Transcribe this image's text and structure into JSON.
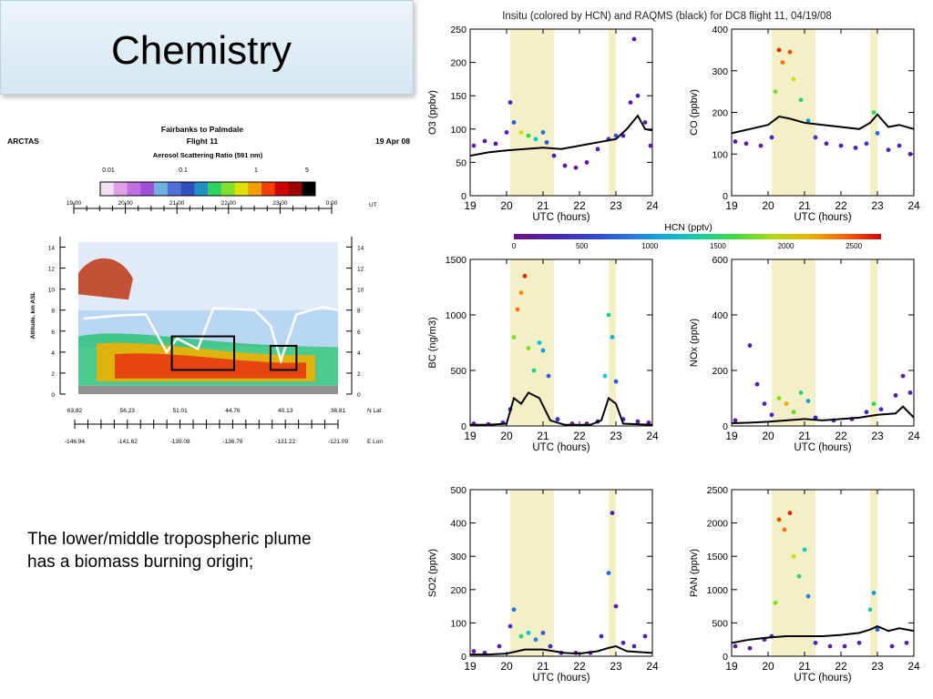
{
  "slide": {
    "title": "Chemistry",
    "caption_line1": "The lower/middle tropospheric plume",
    "caption_line2": "has a biomass burning origin;"
  },
  "lidar": {
    "left_label": "ARCTAS",
    "title_line1": "Fairbanks to Palmdale",
    "title_line2": "Flight 11",
    "right_label": "19 Apr 08",
    "colorbar_title": "Aerosol Scattering Ratio (591 nm)",
    "colorbar_ticks": [
      "0.01",
      "0.1",
      "1",
      "5"
    ],
    "time_ticks": [
      "19:00",
      "20:00",
      "21:00",
      "22:00",
      "23:00",
      "0:00"
    ],
    "time_unit": "UT",
    "altitude_label": "Altitude, km ASL",
    "altitude_ticks": [
      "0",
      "2",
      "4",
      "6",
      "8",
      "10",
      "12",
      "14"
    ],
    "lat_ticks": [
      "63.82",
      "56.23",
      "51.01",
      "44.76",
      "40.13",
      "36.81"
    ],
    "lat_unit": "N Lat",
    "lon_ticks": [
      "-146.94",
      "-141.62",
      "-139.08",
      "-136.79",
      "-131.22",
      "-121.09"
    ],
    "lon_unit": "E Lon",
    "boxes_hours": [
      [
        20.8,
        22.0,
        2.3,
        5.5
      ],
      [
        22.7,
        23.2,
        2.3,
        4.6
      ]
    ]
  },
  "chart_data": {
    "type": "scatter",
    "title": "Insitu (colored by HCN) and RAQMS (black) for DC8 flight 11, 04/19/08",
    "colorbar": {
      "label": "HCN (pptv)",
      "ticks": [
        "0",
        "500",
        "1000",
        "1500",
        "2000",
        "2500"
      ],
      "range": [
        0,
        2700
      ]
    },
    "xlabel": "UTC (hours)",
    "xlim": [
      19,
      24
    ],
    "xticks": [
      "19",
      "20",
      "21",
      "22",
      "23",
      "24"
    ],
    "shaded_hours": [
      [
        20.1,
        21.3
      ],
      [
        22.8,
        23.0
      ]
    ],
    "panels": [
      {
        "ylabel": "O3 (ppbv)",
        "ylim": [
          0,
          250
        ],
        "yticks": [
          "0",
          "50",
          "100",
          "150",
          "200",
          "250"
        ],
        "raqms": [
          [
            19.0,
            60
          ],
          [
            19.5,
            65
          ],
          [
            20.0,
            68
          ],
          [
            20.5,
            70
          ],
          [
            21.0,
            72
          ],
          [
            21.5,
            70
          ],
          [
            22.0,
            75
          ],
          [
            22.5,
            80
          ],
          [
            23.0,
            85
          ],
          [
            23.3,
            100
          ],
          [
            23.6,
            120
          ],
          [
            23.8,
            100
          ],
          [
            24.0,
            98
          ]
        ],
        "insitu": [
          [
            19.1,
            75,
            100
          ],
          [
            19.4,
            82,
            150
          ],
          [
            19.7,
            78,
            200
          ],
          [
            20.0,
            95,
            300
          ],
          [
            20.1,
            140,
            400
          ],
          [
            20.2,
            110,
            700
          ],
          [
            20.4,
            95,
            2000
          ],
          [
            20.6,
            90,
            1600
          ],
          [
            20.8,
            85,
            1200
          ],
          [
            21.0,
            95,
            800
          ],
          [
            21.1,
            80,
            600
          ],
          [
            21.3,
            60,
            300
          ],
          [
            21.6,
            45,
            150
          ],
          [
            21.9,
            42,
            100
          ],
          [
            22.2,
            50,
            150
          ],
          [
            22.5,
            70,
            250
          ],
          [
            22.8,
            85,
            500
          ],
          [
            23.0,
            90,
            700
          ],
          [
            23.2,
            90,
            300
          ],
          [
            23.4,
            140,
            200
          ],
          [
            23.5,
            235,
            150
          ],
          [
            23.6,
            150,
            250
          ],
          [
            23.8,
            110,
            200
          ],
          [
            23.95,
            75,
            150
          ]
        ]
      },
      {
        "ylabel": "CO (ppbv)",
        "ylim": [
          0,
          400
        ],
        "yticks": [
          "0",
          "100",
          "200",
          "300",
          "400"
        ],
        "raqms": [
          [
            19.0,
            150
          ],
          [
            19.5,
            160
          ],
          [
            20.0,
            170
          ],
          [
            20.3,
            190
          ],
          [
            20.6,
            185
          ],
          [
            21.0,
            175
          ],
          [
            21.5,
            170
          ],
          [
            22.0,
            165
          ],
          [
            22.5,
            160
          ],
          [
            22.8,
            175
          ],
          [
            23.0,
            195
          ],
          [
            23.3,
            165
          ],
          [
            23.6,
            170
          ],
          [
            24.0,
            160
          ]
        ],
        "insitu": [
          [
            19.1,
            130,
            150
          ],
          [
            19.4,
            125,
            150
          ],
          [
            19.8,
            120,
            200
          ],
          [
            20.1,
            140,
            400
          ],
          [
            20.2,
            250,
            1800
          ],
          [
            20.3,
            350,
            2600
          ],
          [
            20.4,
            320,
            2400
          ],
          [
            20.6,
            345,
            2500
          ],
          [
            20.7,
            280,
            2000
          ],
          [
            20.9,
            230,
            1500
          ],
          [
            21.1,
            180,
            1000
          ],
          [
            21.3,
            140,
            500
          ],
          [
            21.6,
            125,
            200
          ],
          [
            22.0,
            120,
            200
          ],
          [
            22.4,
            115,
            250
          ],
          [
            22.7,
            125,
            500
          ],
          [
            22.9,
            200,
            1500
          ],
          [
            23.0,
            150,
            800
          ],
          [
            23.3,
            110,
            400
          ],
          [
            23.6,
            120,
            300
          ],
          [
            23.9,
            100,
            200
          ]
        ]
      },
      {
        "ylabel": "BC (ng/m3)",
        "ylim": [
          0,
          1500
        ],
        "yticks": [
          "0",
          "500",
          "1000",
          "1500"
        ],
        "raqms": [
          [
            19.0,
            10
          ],
          [
            19.5,
            10
          ],
          [
            20.0,
            20
          ],
          [
            20.2,
            250
          ],
          [
            20.4,
            200
          ],
          [
            20.6,
            300
          ],
          [
            20.9,
            250
          ],
          [
            21.2,
            50
          ],
          [
            21.6,
            10
          ],
          [
            22.3,
            10
          ],
          [
            22.6,
            50
          ],
          [
            22.8,
            250
          ],
          [
            23.0,
            200
          ],
          [
            23.2,
            20
          ],
          [
            24.0,
            10
          ]
        ],
        "insitu": [
          [
            19.1,
            20,
            150
          ],
          [
            19.5,
            15,
            150
          ],
          [
            19.9,
            30,
            200
          ],
          [
            20.1,
            150,
            600
          ],
          [
            20.2,
            800,
            1800
          ],
          [
            20.3,
            1050,
            2400
          ],
          [
            20.4,
            1200,
            2300
          ],
          [
            20.5,
            1350,
            2600
          ],
          [
            20.6,
            700,
            1800
          ],
          [
            20.75,
            500,
            1400
          ],
          [
            20.9,
            750,
            1200
          ],
          [
            21.0,
            680,
            1000
          ],
          [
            21.15,
            450,
            700
          ],
          [
            21.4,
            60,
            300
          ],
          [
            21.8,
            20,
            150
          ],
          [
            22.2,
            20,
            150
          ],
          [
            22.5,
            40,
            200
          ],
          [
            22.7,
            450,
            1200
          ],
          [
            22.8,
            1000,
            1400
          ],
          [
            22.9,
            800,
            1100
          ],
          [
            23.0,
            400,
            700
          ],
          [
            23.2,
            60,
            300
          ],
          [
            23.6,
            40,
            200
          ],
          [
            23.9,
            30,
            150
          ]
        ]
      },
      {
        "ylabel": "NOx (pptv)",
        "ylim": [
          0,
          600
        ],
        "yticks": [
          "0",
          "200",
          "400",
          "600"
        ],
        "raqms": [
          [
            19.0,
            10
          ],
          [
            19.5,
            12
          ],
          [
            20.0,
            15
          ],
          [
            20.5,
            20
          ],
          [
            21.0,
            25
          ],
          [
            21.5,
            20
          ],
          [
            22.0,
            25
          ],
          [
            22.5,
            30
          ],
          [
            23.0,
            40
          ],
          [
            23.5,
            45
          ],
          [
            23.7,
            70
          ],
          [
            24.0,
            30
          ]
        ],
        "insitu": [
          [
            19.1,
            20,
            150
          ],
          [
            19.5,
            290,
            200
          ],
          [
            19.7,
            150,
            250
          ],
          [
            19.9,
            80,
            300
          ],
          [
            20.1,
            40,
            400
          ],
          [
            20.3,
            100,
            1800
          ],
          [
            20.5,
            80,
            2200
          ],
          [
            20.7,
            50,
            1700
          ],
          [
            20.9,
            120,
            1500
          ],
          [
            21.1,
            90,
            1000
          ],
          [
            21.3,
            30,
            400
          ],
          [
            21.8,
            20,
            200
          ],
          [
            22.3,
            25,
            200
          ],
          [
            22.7,
            50,
            300
          ],
          [
            22.9,
            80,
            1500
          ],
          [
            23.1,
            60,
            400
          ],
          [
            23.5,
            110,
            300
          ],
          [
            23.7,
            180,
            200
          ],
          [
            23.9,
            120,
            200
          ]
        ]
      },
      {
        "ylabel": "SO2 (pptv)",
        "ylim": [
          0,
          500
        ],
        "yticks": [
          "0",
          "100",
          "200",
          "300",
          "400",
          "500"
        ],
        "raqms": [
          [
            19.0,
            5
          ],
          [
            19.5,
            5
          ],
          [
            20.0,
            8
          ],
          [
            20.5,
            20
          ],
          [
            21.0,
            20
          ],
          [
            21.3,
            15
          ],
          [
            21.6,
            10
          ],
          [
            22.0,
            8
          ],
          [
            22.5,
            15
          ],
          [
            22.8,
            25
          ],
          [
            23.0,
            30
          ],
          [
            23.3,
            15
          ],
          [
            24.0,
            10
          ]
        ],
        "insitu": [
          [
            19.1,
            15,
            150
          ],
          [
            19.4,
            10,
            150
          ],
          [
            19.8,
            30,
            200
          ],
          [
            20.1,
            90,
            500
          ],
          [
            20.2,
            140,
            800
          ],
          [
            20.4,
            60,
            1500
          ],
          [
            20.6,
            70,
            1200
          ],
          [
            20.8,
            50,
            900
          ],
          [
            21.0,
            70,
            700
          ],
          [
            21.2,
            30,
            400
          ],
          [
            21.5,
            10,
            200
          ],
          [
            21.9,
            10,
            200
          ],
          [
            22.3,
            10,
            200
          ],
          [
            22.6,
            60,
            400
          ],
          [
            22.8,
            250,
            800
          ],
          [
            22.9,
            430,
            300
          ],
          [
            23.0,
            150,
            200
          ],
          [
            23.2,
            40,
            200
          ],
          [
            23.5,
            30,
            200
          ],
          [
            23.8,
            60,
            250
          ]
        ]
      },
      {
        "ylabel": "PAN (pptv)",
        "ylim": [
          0,
          2500
        ],
        "yticks": [
          "0",
          "500",
          "1000",
          "1500",
          "2000",
          "2500"
        ],
        "raqms": [
          [
            19.0,
            200
          ],
          [
            19.5,
            250
          ],
          [
            20.0,
            280
          ],
          [
            20.5,
            300
          ],
          [
            21.0,
            300
          ],
          [
            21.5,
            300
          ],
          [
            22.0,
            320
          ],
          [
            22.5,
            350
          ],
          [
            22.8,
            400
          ],
          [
            23.0,
            450
          ],
          [
            23.3,
            380
          ],
          [
            23.6,
            420
          ],
          [
            24.0,
            380
          ]
        ],
        "insitu": [
          [
            19.1,
            150,
            150
          ],
          [
            19.5,
            120,
            150
          ],
          [
            19.9,
            250,
            200
          ],
          [
            20.1,
            300,
            400
          ],
          [
            20.2,
            800,
            1800
          ],
          [
            20.3,
            2050,
            2500
          ],
          [
            20.45,
            1900,
            2400
          ],
          [
            20.6,
            2150,
            2600
          ],
          [
            20.7,
            1500,
            2000
          ],
          [
            20.85,
            1200,
            1500
          ],
          [
            21.0,
            1600,
            1300
          ],
          [
            21.1,
            900,
            900
          ],
          [
            21.3,
            200,
            400
          ],
          [
            21.7,
            150,
            200
          ],
          [
            22.1,
            150,
            200
          ],
          [
            22.5,
            200,
            300
          ],
          [
            22.8,
            700,
            1400
          ],
          [
            22.9,
            950,
            1000
          ],
          [
            23.0,
            400,
            700
          ],
          [
            23.4,
            150,
            300
          ],
          [
            23.8,
            200,
            250
          ]
        ]
      }
    ]
  }
}
